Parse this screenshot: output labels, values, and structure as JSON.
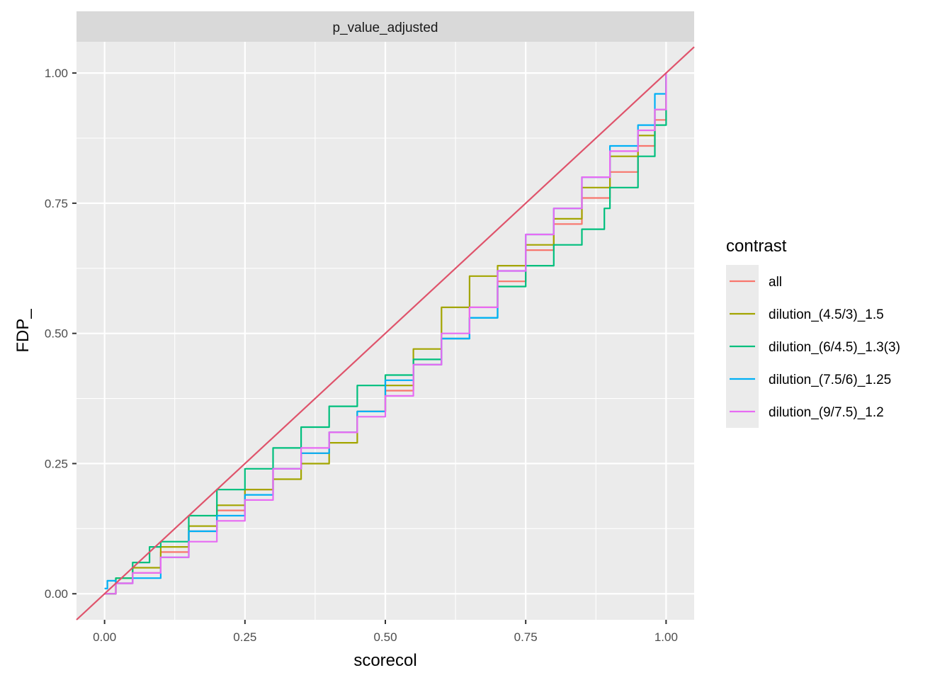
{
  "chart_data": {
    "type": "line",
    "facet_label": "p_value_adjusted",
    "xlabel": "scorecol",
    "ylabel": "FDP_",
    "xlim": [
      -0.05,
      1.05
    ],
    "ylim": [
      -0.05,
      1.06
    ],
    "x_ticks": [
      0.0,
      0.25,
      0.5,
      0.75,
      1.0
    ],
    "x_tick_labels": [
      "0.00",
      "0.25",
      "0.50",
      "0.75",
      "1.00"
    ],
    "y_ticks": [
      0.0,
      0.25,
      0.5,
      0.75,
      1.0
    ],
    "y_tick_labels": [
      "0.00",
      "0.25",
      "0.50",
      "0.75",
      "1.00"
    ],
    "grid": true,
    "legend": {
      "title": "contrast",
      "position": "right"
    },
    "reference_line": {
      "slope": 1,
      "intercept": 0,
      "color": "#DF536B"
    },
    "series": [
      {
        "name": "all",
        "color": "#F8766D",
        "x": [
          0.0,
          0.02,
          0.05,
          0.1,
          0.15,
          0.2,
          0.25,
          0.3,
          0.35,
          0.4,
          0.45,
          0.5,
          0.55,
          0.6,
          0.65,
          0.7,
          0.75,
          0.8,
          0.85,
          0.9,
          0.95,
          0.98,
          1.0
        ],
        "y": [
          0.0,
          0.02,
          0.04,
          0.08,
          0.12,
          0.16,
          0.2,
          0.24,
          0.27,
          0.31,
          0.35,
          0.39,
          0.44,
          0.49,
          0.55,
          0.6,
          0.66,
          0.71,
          0.76,
          0.81,
          0.86,
          0.91,
          1.0
        ]
      },
      {
        "name": "dilution_(4.5/3)_1.5",
        "color": "#A3A500",
        "x": [
          0.0,
          0.02,
          0.05,
          0.1,
          0.15,
          0.2,
          0.25,
          0.3,
          0.35,
          0.4,
          0.45,
          0.5,
          0.55,
          0.6,
          0.65,
          0.7,
          0.75,
          0.8,
          0.85,
          0.9,
          0.95,
          0.98,
          1.0
        ],
        "y": [
          0.0,
          0.03,
          0.05,
          0.09,
          0.13,
          0.17,
          0.2,
          0.22,
          0.25,
          0.29,
          0.35,
          0.4,
          0.47,
          0.55,
          0.61,
          0.63,
          0.67,
          0.72,
          0.78,
          0.84,
          0.88,
          0.93,
          1.0
        ]
      },
      {
        "name": "dilution_(6/4.5)_1.3(3)",
        "color": "#00BF7D",
        "x": [
          0.0,
          0.02,
          0.05,
          0.08,
          0.1,
          0.15,
          0.2,
          0.25,
          0.3,
          0.35,
          0.4,
          0.45,
          0.5,
          0.55,
          0.6,
          0.65,
          0.7,
          0.75,
          0.8,
          0.85,
          0.89,
          0.9,
          0.95,
          0.98,
          1.0
        ],
        "y": [
          0.0,
          0.03,
          0.06,
          0.09,
          0.1,
          0.15,
          0.2,
          0.24,
          0.28,
          0.32,
          0.36,
          0.4,
          0.42,
          0.45,
          0.49,
          0.53,
          0.59,
          0.63,
          0.67,
          0.7,
          0.74,
          0.78,
          0.84,
          0.9,
          1.0
        ]
      },
      {
        "name": "dilution_(7.5/6)_1.25",
        "color": "#00B0F6",
        "x": [
          0.0,
          0.005,
          0.02,
          0.05,
          0.1,
          0.15,
          0.2,
          0.25,
          0.3,
          0.35,
          0.4,
          0.45,
          0.5,
          0.55,
          0.6,
          0.65,
          0.7,
          0.75,
          0.8,
          0.85,
          0.9,
          0.95,
          0.98,
          1.0
        ],
        "y": [
          0.01,
          0.025,
          0.02,
          0.03,
          0.07,
          0.12,
          0.15,
          0.19,
          0.24,
          0.27,
          0.31,
          0.35,
          0.41,
          0.44,
          0.49,
          0.53,
          0.62,
          0.69,
          0.74,
          0.8,
          0.86,
          0.9,
          0.96,
          1.0
        ]
      },
      {
        "name": "dilution_(9/7.5)_1.2",
        "color": "#E76BF3",
        "x": [
          0.0,
          0.02,
          0.05,
          0.1,
          0.15,
          0.2,
          0.25,
          0.3,
          0.35,
          0.4,
          0.45,
          0.5,
          0.55,
          0.6,
          0.65,
          0.7,
          0.75,
          0.8,
          0.85,
          0.9,
          0.95,
          0.98,
          1.0
        ],
        "y": [
          0.0,
          0.02,
          0.04,
          0.07,
          0.1,
          0.14,
          0.18,
          0.24,
          0.28,
          0.31,
          0.34,
          0.38,
          0.44,
          0.5,
          0.55,
          0.62,
          0.69,
          0.74,
          0.8,
          0.85,
          0.89,
          0.93,
          1.0
        ]
      }
    ]
  }
}
